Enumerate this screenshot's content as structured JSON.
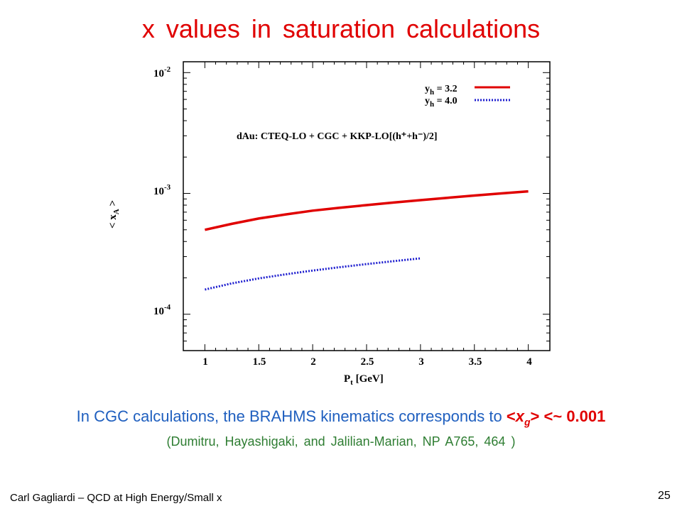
{
  "slide": {
    "title": "x values in saturation calculations",
    "statement_prefix": "In CGC calculations, the BRAHMS kinematics corresponds to ",
    "statement_lt": "<",
    "statement_var": "x",
    "statement_sub": "g",
    "statement_suffix": "> <~ 0.001",
    "reference": "(Dumitru, Hayashigaki, and Jalilian-Marian, NP A765, 464 )",
    "footer": "Carl Gagliardi – QCD at High Energy/Small x",
    "page_number": "25"
  },
  "chart_data": {
    "type": "line",
    "xlabel_main": "P",
    "xlabel_sub": "t",
    "xlabel_unit": " [GeV]",
    "ylabel_main": "< x",
    "ylabel_sub": "A",
    "ylabel_close": " >",
    "x_ticks": [
      "1",
      "1.5",
      "2",
      "2.5",
      "3",
      "3.5",
      "4"
    ],
    "y_ticks": [
      {
        "base": "10",
        "exp": "-2"
      },
      {
        "base": "10",
        "exp": "-3"
      },
      {
        "base": "10",
        "exp": "-4"
      }
    ],
    "xlim": [
      0.8,
      4.2
    ],
    "ylim": [
      5e-05,
      0.0123
    ],
    "y_scale": "log",
    "annotation": "dAu: CTEQ-LO + CGC + KKP-LO[(h⁺+h⁻)/2]",
    "legend_position": "top-right",
    "series": [
      {
        "name": "y_h = 3.2",
        "legend_main": "y",
        "legend_sub": "h",
        "legend_value": " = 3.2",
        "color": "#e00000",
        "style": "solid",
        "x": [
          1.0,
          1.25,
          1.5,
          1.75,
          2.0,
          2.25,
          2.5,
          2.75,
          3.0,
          3.25,
          3.5,
          3.75,
          4.0
        ],
        "y": [
          0.0005,
          0.00056,
          0.00062,
          0.00067,
          0.00072,
          0.00076,
          0.0008,
          0.00084,
          0.00088,
          0.00092,
          0.00096,
          0.001,
          0.00104
        ]
      },
      {
        "name": "y_h = 4.0",
        "legend_main": "y",
        "legend_sub": "h",
        "legend_value": " = 4.0",
        "color": "#1f1fcf",
        "style": "dotted",
        "x": [
          1.0,
          1.25,
          1.5,
          1.75,
          2.0,
          2.25,
          2.5,
          2.75,
          3.0
        ],
        "y": [
          0.00016,
          0.00018,
          0.000198,
          0.000214,
          0.00023,
          0.000245,
          0.00026,
          0.000275,
          0.00029
        ]
      }
    ]
  }
}
